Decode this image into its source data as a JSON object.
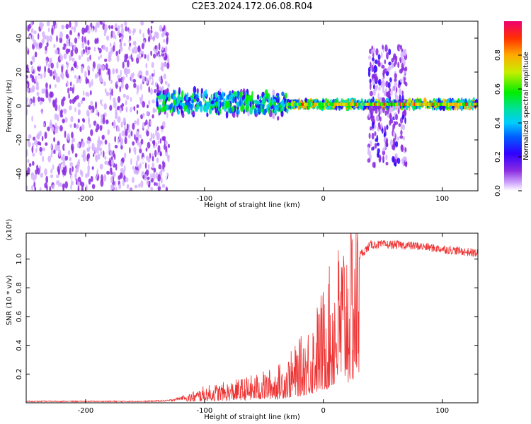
{
  "title": "C2E3.2024.172.06.08.R04",
  "chart_data": [
    {
      "type": "heatmap",
      "xlabel": "Height of straight line (km)",
      "ylabel": "Frequency (Hz)",
      "xlim": [
        -250,
        130
      ],
      "ylim": [
        -50,
        50
      ],
      "xticks": [
        -200,
        -100,
        0,
        100
      ],
      "yticks": [
        -40,
        -20,
        0,
        20,
        40
      ],
      "colorbar": {
        "label": "Normalized spectral amplitude",
        "range": [
          0.0,
          1.0
        ],
        "ticks": [
          0.0,
          0.2,
          0.4,
          0.6,
          0.8
        ]
      },
      "regions": [
        {
          "x": [
            -250,
            -130
          ],
          "freq_spread": 50,
          "amplitude": 0.15
        },
        {
          "x": [
            -140,
            -30
          ],
          "freq_spread": 8,
          "amplitude": 0.45
        },
        {
          "x": [
            -30,
            130
          ],
          "freq_spread": 2,
          "amplitude": 0.75
        },
        {
          "x": [
            38,
            70
          ],
          "freq_spread": 35,
          "amplitude": 0.2
        }
      ]
    },
    {
      "type": "line",
      "xlabel": "Height of straight line (km)",
      "ylabel": "SNR (10 * v/v)",
      "ylabel_scale": "(x10⁴)",
      "xlim": [
        -250,
        130
      ],
      "ylim": [
        0,
        1.18
      ],
      "xticks": [
        -200,
        -100,
        0,
        100
      ],
      "yticks": [
        0.2,
        0.4,
        0.6,
        0.8,
        1.0
      ],
      "color": "#ee3333",
      "series": [
        {
          "x": [
            -250,
            -150,
            -130,
            -115,
            -100,
            -80,
            -60,
            -40,
            -30,
            -20,
            -10,
            0,
            10,
            20,
            30,
            40,
            60,
            80,
            100,
            120,
            130
          ],
          "values": [
            0.01,
            0.01,
            0.015,
            0.04,
            0.08,
            0.1,
            0.13,
            0.17,
            0.22,
            0.3,
            0.4,
            0.55,
            0.72,
            0.88,
            1.02,
            1.1,
            1.1,
            1.09,
            1.07,
            1.05,
            1.04
          ]
        }
      ]
    }
  ]
}
